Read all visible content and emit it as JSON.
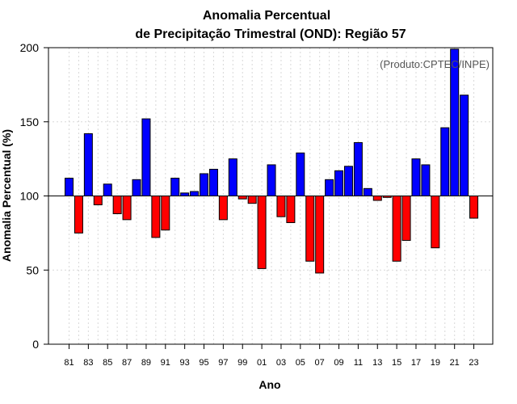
{
  "chart_data": {
    "type": "bar",
    "title": "Anomalia Percentual",
    "subtitle": "de Precipitação Trimestral (OND): Região 57",
    "xlabel": "Ano",
    "ylabel": "Anomalia Percentual (%)",
    "credit": "(Produto:CPTEC/INPE)",
    "baseline": 100,
    "ylim": [
      0,
      200
    ],
    "yticks": [
      "0",
      "50",
      "100",
      "150",
      "200"
    ],
    "grid": true,
    "colors": {
      "above": "#0000ff",
      "below": "#ff0000"
    },
    "categories": [
      "81",
      "82",
      "83",
      "84",
      "85",
      "86",
      "87",
      "88",
      "89",
      "90",
      "91",
      "92",
      "93",
      "94",
      "95",
      "96",
      "97",
      "98",
      "99",
      "00",
      "01",
      "02",
      "03",
      "04",
      "05",
      "06",
      "07",
      "08",
      "09",
      "10",
      "11",
      "12",
      "13",
      "14",
      "15",
      "16",
      "17",
      "18",
      "19",
      "20",
      "21",
      "22",
      "23"
    ],
    "tick_labels": [
      "81",
      "83",
      "85",
      "87",
      "89",
      "91",
      "93",
      "95",
      "97",
      "99",
      "01",
      "03",
      "05",
      "07",
      "09",
      "11",
      "13",
      "15",
      "17",
      "19",
      "21",
      "23"
    ],
    "values": [
      112,
      75,
      142,
      94,
      108,
      88,
      84,
      111,
      152,
      72,
      77,
      112,
      102,
      103,
      115,
      118,
      84,
      125,
      98,
      95,
      51,
      121,
      86,
      82,
      129,
      56,
      48,
      111,
      117,
      120,
      136,
      105,
      97,
      99,
      56,
      70,
      125,
      121,
      65,
      146,
      199,
      168,
      85
    ]
  }
}
